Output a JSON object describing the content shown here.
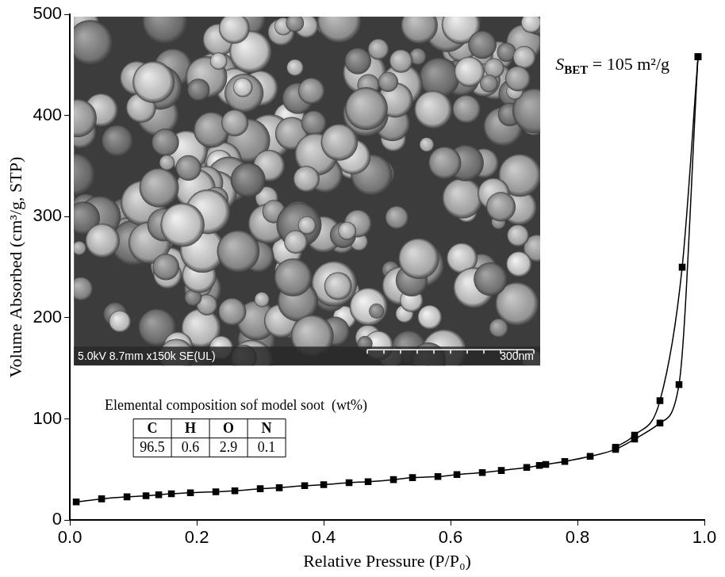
{
  "chart_data": {
    "type": "line",
    "x_label": "Relative Pressure (P/P₀)",
    "y_label": "Volume Absorbed (cm³/g, STP)",
    "xlim": [
      0,
      1
    ],
    "xticks": [
      {
        "value": 0,
        "label": "0.0"
      },
      {
        "value": 0.2,
        "label": "0.2"
      },
      {
        "value": 0.4,
        "label": "0.4"
      },
      {
        "value": 0.6,
        "label": "0.6"
      },
      {
        "value": 0.8,
        "label": "0.8"
      },
      {
        "value": 1,
        "label": "1.0"
      }
    ],
    "ylim": [
      0,
      500
    ],
    "yticks": [
      0,
      100,
      200,
      300,
      400,
      500
    ],
    "grid": false,
    "series": [
      {
        "color": "#000000",
        "marker": "square",
        "line_style": "solid",
        "x": [
          0.01,
          0.05,
          0.09,
          0.12,
          0.14,
          0.16,
          0.19,
          0.23,
          0.26,
          0.3,
          0.33,
          0.37,
          0.4,
          0.44,
          0.47,
          0.51,
          0.54,
          0.58,
          0.61,
          0.65,
          0.68,
          0.72,
          0.74,
          0.75,
          0.78,
          0.82,
          0.86,
          0.89,
          0.93,
          0.96,
          0.99
        ],
        "values": [
          18,
          21,
          23,
          24,
          25,
          26,
          27,
          28,
          29,
          31,
          32,
          34,
          35,
          37,
          38,
          40,
          42,
          43,
          45,
          47,
          49,
          52,
          54,
          55,
          58,
          63,
          70,
          80,
          96,
          134,
          458
        ]
      },
      {
        "color": "#000000",
        "marker": "square",
        "line_style": "solid",
        "x": [
          0.99,
          0.965,
          0.93,
          0.89,
          0.86
        ],
        "values": [
          458,
          250,
          118,
          84,
          72
        ]
      }
    ],
    "annotation": {
      "symbol": "S",
      "subscript": "BET",
      "text": " = 105 m²/g"
    },
    "table": {
      "title": "Elemental composition sof model soot  (wt%)",
      "header": [
        "C",
        "H",
        "O",
        "N"
      ],
      "rows": [
        [
          96.5,
          0.6,
          2.9,
          0.1
        ]
      ]
    },
    "inset": {
      "caption": "5.0kV 8.7mm x150k SE(UL)",
      "scale_bar": "300nm"
    }
  }
}
